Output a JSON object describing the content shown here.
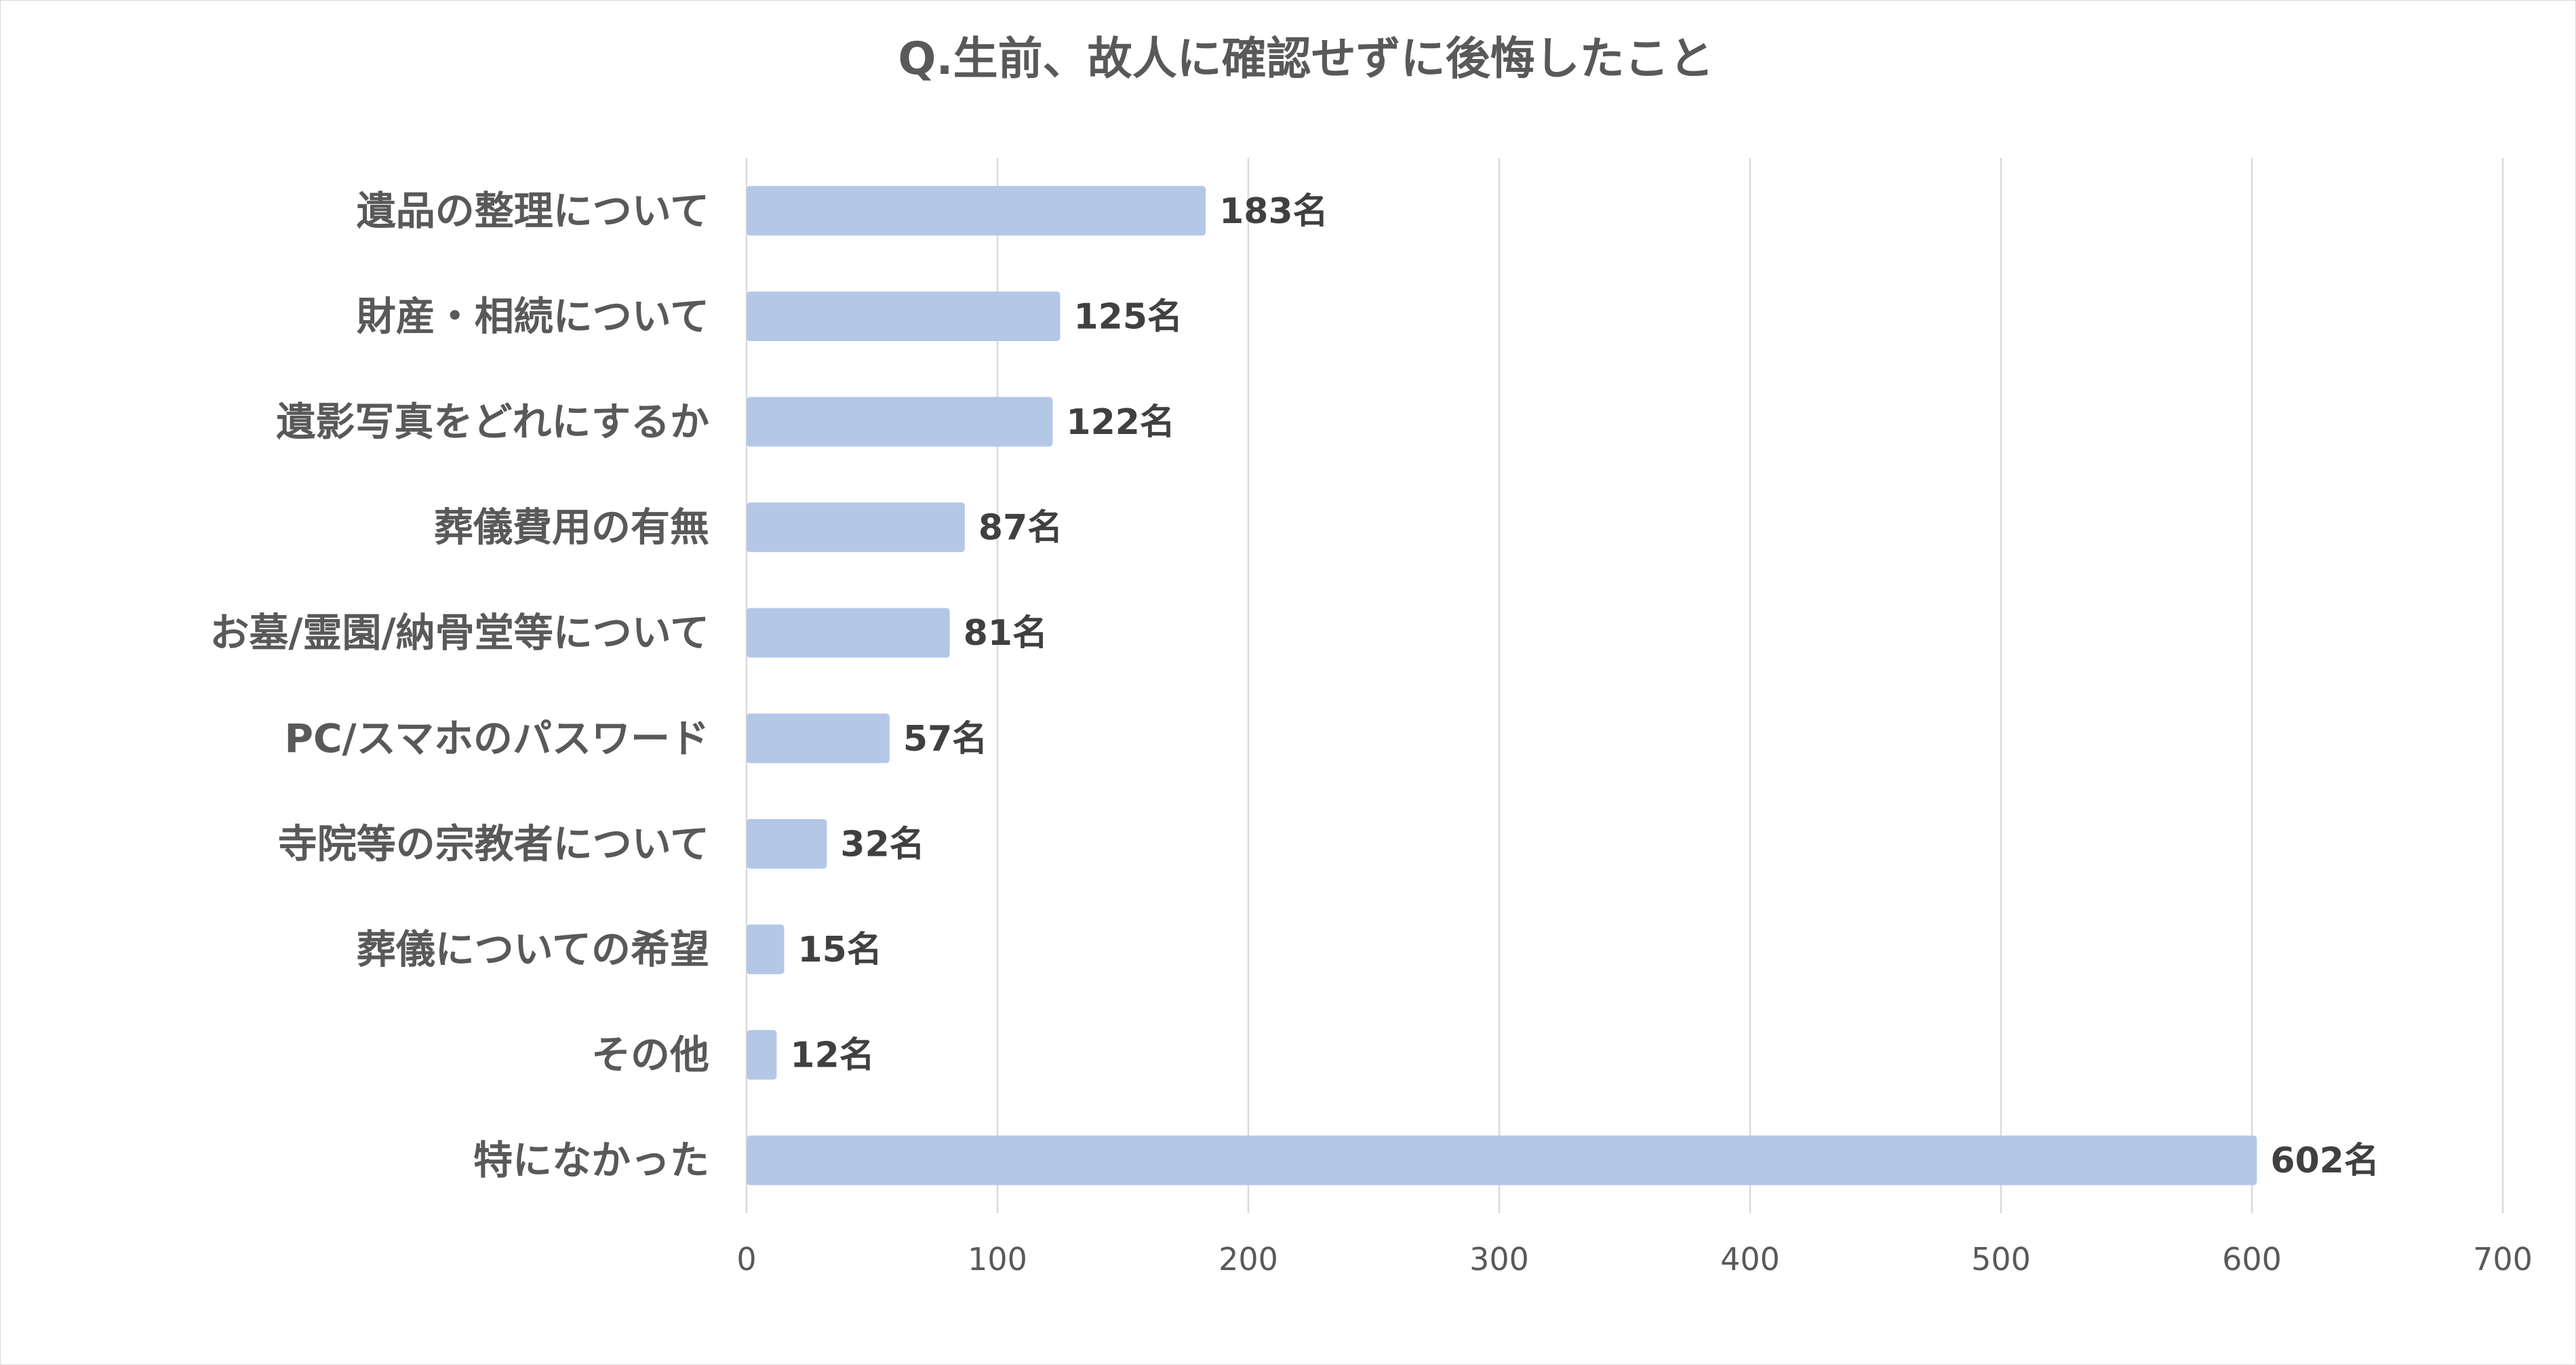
{
  "chart_data": {
    "type": "bar",
    "orientation": "horizontal",
    "title": "Q.生前、故人に確認せずに後悔したこと",
    "categories": [
      "遺品の整理について",
      "財産・相続について",
      "遺影写真をどれにするか",
      "葬儀費用の有無",
      "お墓/霊園/納骨堂等について",
      "PC/スマホのパスワード",
      "寺院等の宗教者について",
      "葬儀についての希望",
      "その他",
      "特になかった"
    ],
    "values": [
      183,
      125,
      122,
      87,
      81,
      57,
      32,
      15,
      12,
      602
    ],
    "value_labels": [
      "183名",
      "125名",
      "122名",
      "87名",
      "81名",
      "57名",
      "32名",
      "15名",
      "12名",
      "602名"
    ],
    "xlim": [
      0,
      700
    ],
    "ticks": [
      0,
      100,
      200,
      300,
      400,
      500,
      600,
      700
    ],
    "tick_labels": [
      "0",
      "100",
      "200",
      "300",
      "400",
      "500",
      "600",
      "700"
    ],
    "grid": true,
    "legend": "none",
    "colors": {
      "bar": "#b4c7e7",
      "grid": "#d9d9d9",
      "title": "#595959",
      "category_text": "#595959",
      "value_text": "#404040"
    }
  }
}
